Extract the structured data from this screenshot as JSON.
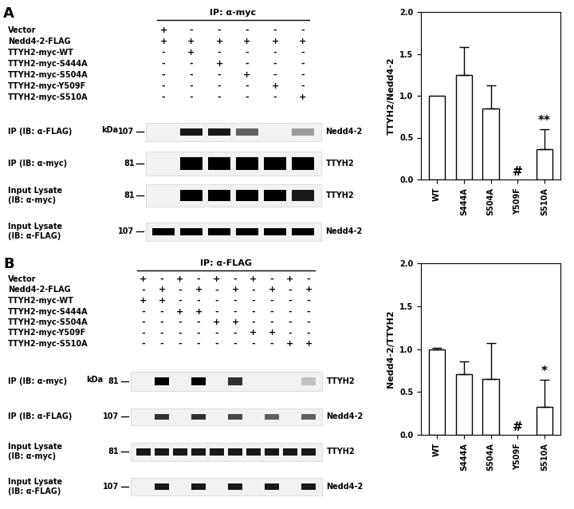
{
  "blots": [
    {
      "panel": "A",
      "header": "IP: α-myc",
      "conditions": [
        {
          "name": "Vector",
          "lanes": [
            "+",
            "-",
            "-",
            "-",
            "-",
            "-"
          ]
        },
        {
          "name": "Nedd4-2-FLAG",
          "lanes": [
            "+",
            "+",
            "+",
            "+",
            "+",
            "+"
          ]
        },
        {
          "name": "TTYH2-myc-WT",
          "lanes": [
            "-",
            "+",
            "-",
            "-",
            "-",
            "-"
          ]
        },
        {
          "name": "TTYH2-myc-S444A",
          "lanes": [
            "-",
            "-",
            "+",
            "-",
            "-",
            "-"
          ]
        },
        {
          "name": "TTYH2-myc-S504A",
          "lanes": [
            "-",
            "-",
            "-",
            "+",
            "-",
            "-"
          ]
        },
        {
          "name": "TTYH2-myc-Y509F",
          "lanes": [
            "-",
            "-",
            "-",
            "-",
            "+",
            "-"
          ]
        },
        {
          "name": "TTYH2-myc-S510A",
          "lanes": [
            "-",
            "-",
            "-",
            "-",
            "-",
            "+"
          ]
        }
      ],
      "rows": [
        {
          "label": "IP (IB: α-FLAG)",
          "marker_unit": "kDa",
          "marker": 107,
          "protein": "Nedd4-2",
          "bands": [
            0,
            0.9,
            0.9,
            0.6,
            0,
            0.35
          ]
        },
        {
          "label": "IP (IB: α-myc)",
          "marker": 81,
          "protein": "TTYH2",
          "bands": [
            0,
            1,
            1,
            1,
            1,
            1
          ]
        },
        {
          "label": "Input Lysate\n(IB: α-myc)",
          "marker": 81,
          "protein": "TTYH2",
          "bands": [
            0,
            1,
            1,
            1,
            1,
            0.9
          ]
        },
        {
          "label": "Input Lysate\n(IB: α-FLAG)",
          "marker": 107,
          "protein": "Nedd4-2",
          "bands": [
            1,
            1,
            1,
            1,
            1,
            1
          ]
        }
      ]
    },
    {
      "panel": "B",
      "header": "IP: α-FLAG",
      "conditions": [
        {
          "name": "Vector",
          "lanes": [
            "+",
            "-",
            "+",
            "-",
            "+",
            "-",
            "+",
            "-",
            "+",
            "-"
          ]
        },
        {
          "name": "Nedd4-2-FLAG",
          "lanes": [
            "-",
            "+",
            "-",
            "+",
            "-",
            "+",
            "-",
            "+",
            "-",
            "+"
          ]
        },
        {
          "name": "TTYH2-myc-WT",
          "lanes": [
            "+",
            "+",
            "-",
            "-",
            "-",
            "-",
            "-",
            "-",
            "-",
            "-"
          ]
        },
        {
          "name": "TTYH2-myc-S444A",
          "lanes": [
            "-",
            "-",
            "+",
            "+",
            "-",
            "-",
            "-",
            "-",
            "-",
            "-"
          ]
        },
        {
          "name": "TTYH2-myc-S504A",
          "lanes": [
            "-",
            "-",
            "-",
            "-",
            "+",
            "+",
            "-",
            "-",
            "-",
            "-"
          ]
        },
        {
          "name": "TTYH2-myc-Y509F",
          "lanes": [
            "-",
            "-",
            "-",
            "-",
            "-",
            "-",
            "+",
            "+",
            "-",
            "-"
          ]
        },
        {
          "name": "TTYH2-myc-S510A",
          "lanes": [
            "-",
            "-",
            "-",
            "-",
            "-",
            "-",
            "-",
            "-",
            "+",
            "+"
          ]
        }
      ],
      "rows": [
        {
          "label": "IP (IB: α-myc)",
          "marker_unit": "kDa",
          "marker": 81,
          "protein": "TTYH2",
          "bands": [
            0,
            1,
            0,
            1,
            0,
            0.8,
            0,
            0,
            0,
            0.2
          ]
        },
        {
          "label": "IP (IB: α-FLAG)",
          "marker": 107,
          "protein": "Nedd4-2",
          "bands": [
            0,
            0.8,
            0,
            0.8,
            0,
            0.7,
            0,
            0.6,
            0,
            0.6
          ]
        },
        {
          "label": "Input Lysate\n(IB: α-myc)",
          "marker": 81,
          "protein": "TTYH2",
          "bands": [
            0.9,
            0.9,
            0.9,
            0.9,
            0.9,
            0.9,
            0.9,
            0.9,
            0.9,
            0.9
          ]
        },
        {
          "label": "Input Lysate\n(IB: α-FLAG)",
          "marker": 107,
          "protein": "Nedd4-2",
          "bands": [
            0,
            0.9,
            0,
            0.9,
            0,
            0.9,
            0,
            0.9,
            0,
            0.9
          ]
        }
      ]
    }
  ],
  "chart_data": [
    {
      "type": "bar",
      "ylabel": "TTYH2/Nedd4-2",
      "categories": [
        "WT",
        "S444A",
        "S504A",
        "Y509F",
        "S510A"
      ],
      "values": [
        1.0,
        1.25,
        0.85,
        null,
        0.36
      ],
      "errors": [
        null,
        0.33,
        0.27,
        null,
        0.24
      ],
      "annotations": [
        {
          "category": "Y509F",
          "text": "#"
        },
        {
          "category": "S510A",
          "text": "**"
        }
      ],
      "color": "#ffffff",
      "ylim": [
        0,
        2
      ],
      "yticks": [
        {
          "value": 0,
          "label": "0.0"
        },
        {
          "value": 0.5,
          "label": "0.5"
        },
        {
          "value": 1,
          "label": "1.0"
        },
        {
          "value": 1.5,
          "label": "1.5"
        },
        {
          "value": 2,
          "label": "2.0"
        }
      ]
    },
    {
      "type": "bar",
      "ylabel": "Nedd4-2/TTYH2",
      "categories": [
        "WT",
        "S444A",
        "S504A",
        "Y509F",
        "S510A"
      ],
      "values": [
        1.0,
        0.71,
        0.65,
        null,
        0.33
      ],
      "errors": [
        0.01,
        0.15,
        0.42,
        null,
        0.31
      ],
      "annotations": [
        {
          "category": "Y509F",
          "text": "#"
        },
        {
          "category": "S510A",
          "text": "*"
        }
      ],
      "color": "#ffffff",
      "ylim": [
        0,
        2
      ],
      "yticks": [
        {
          "value": 0,
          "label": "0.0"
        },
        {
          "value": 0.5,
          "label": "0.5"
        },
        {
          "value": 1,
          "label": "1.0"
        },
        {
          "value": 1.5,
          "label": "1.5"
        },
        {
          "value": 2,
          "label": "2.0"
        }
      ]
    }
  ]
}
